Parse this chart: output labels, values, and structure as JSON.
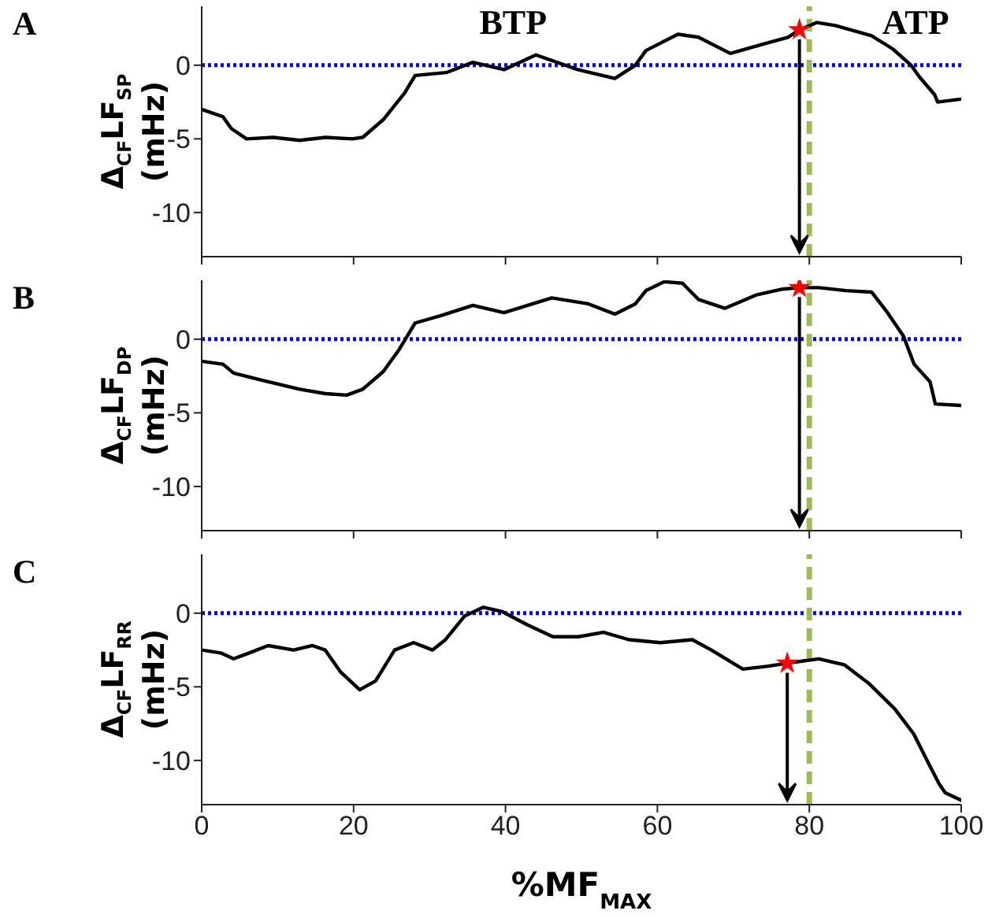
{
  "chart_data": [
    {
      "type": "line",
      "ylabel": "Δ$_{CF}$LF$_{SP}$ (mHz)",
      "annotations": [
        "A",
        "BTP",
        "ATP"
      ],
      "xlim": [
        0,
        100
      ],
      "xticks": [
        0,
        20,
        40,
        60,
        80,
        100
      ],
      "ylim": [
        -13,
        4
      ],
      "yticks": [
        -10,
        -5,
        0
      ],
      "tick_labels": "y",
      "grid": false,
      "ref_lines": [
        {
          "axis": "y",
          "value": 0,
          "color": "#0000ff",
          "line_style": "dotted"
        },
        {
          "axis": "x",
          "value": 80,
          "color": "#9bbb59",
          "line_style": "dashed"
        }
      ],
      "series": [
        {
          "color": "#000000",
          "marker": "none",
          "x": [
            0,
            2.8,
            3.9,
            5.9,
            9.4,
            12.9,
            16.3,
            19.8,
            21.2,
            23.9,
            26.7,
            28.1,
            32.2,
            35.7,
            39.8,
            44,
            49.5,
            54.4,
            57.1,
            58.5,
            62.7,
            65.4,
            69.6,
            73.7,
            77.2,
            78.7,
            81,
            83.4,
            88.2,
            91,
            93.4,
            94.5,
            96.5,
            96.9,
            100
          ],
          "values": [
            -3,
            -3.5,
            -4.3,
            -5,
            -4.9,
            -5.1,
            -4.9,
            -5,
            -4.9,
            -3.7,
            -1.9,
            -0.7,
            -0.5,
            0.2,
            -0.3,
            0.7,
            -0.3,
            -0.9,
            0,
            1,
            2.1,
            1.9,
            0.8,
            1.4,
            1.9,
            2.4,
            2.9,
            2.7,
            2,
            1.1,
            0,
            -0.8,
            -2,
            -2.5,
            -2.3
          ]
        },
        {
          "type": "scatter",
          "color": "#ff0000",
          "marker": "star",
          "x": [
            78.7
          ],
          "values": [
            2.4
          ]
        }
      ]
    },
    {
      "type": "line",
      "ylabel": "Δ$_{CF}$LF$_{DP}$ (mHz)",
      "annotations": [
        "B"
      ],
      "xlim": [
        0,
        100
      ],
      "xticks": [
        0,
        20,
        40,
        60,
        80,
        100
      ],
      "ylim": [
        -13,
        4
      ],
      "yticks": [
        -10,
        -5,
        0
      ],
      "tick_labels": "y",
      "grid": false,
      "ref_lines": [
        {
          "axis": "y",
          "value": 0,
          "color": "#0000ff",
          "line_style": "dotted"
        },
        {
          "axis": "x",
          "value": 80,
          "color": "#9bbb59",
          "line_style": "dashed"
        }
      ],
      "series": [
        {
          "color": "#000000",
          "marker": "none",
          "x": [
            0,
            2.8,
            4.2,
            8,
            12.9,
            16.3,
            19.1,
            21.2,
            23.9,
            26,
            28.1,
            31.5,
            35.7,
            39.8,
            46.1,
            50.9,
            54.4,
            57.1,
            58.5,
            60.9,
            63.3,
            65.4,
            68.9,
            73,
            76.5,
            78.7,
            81.3,
            84.8,
            88.2,
            90.3,
            92.4,
            93.8,
            95.9,
            96.5,
            96.6,
            100
          ],
          "values": [
            -1.5,
            -1.7,
            -2.3,
            -2.8,
            -3.4,
            -3.7,
            -3.8,
            -3.4,
            -2.2,
            -0.7,
            1.1,
            1.6,
            2.3,
            1.8,
            2.8,
            2.4,
            1.7,
            2.4,
            3.3,
            3.9,
            3.8,
            2.7,
            2.1,
            3,
            3.4,
            3.5,
            3.5,
            3.3,
            3.2,
            1.8,
            0.2,
            -1.7,
            -2.9,
            -4.2,
            -4.4,
            -4.5
          ]
        },
        {
          "type": "scatter",
          "color": "#ff0000",
          "marker": "star",
          "x": [
            78.7
          ],
          "values": [
            3.5
          ]
        }
      ]
    },
    {
      "type": "line",
      "ylabel": "Δ$_{CF}$LF$_{RR}$ (mHz)",
      "xlabel": "%MF$_{MAX}$",
      "annotations": [
        "C"
      ],
      "xlim": [
        0,
        100
      ],
      "xticks": [
        0,
        20,
        40,
        60,
        80,
        100
      ],
      "ylim": [
        -13,
        4
      ],
      "yticks": [
        -10,
        -5,
        0
      ],
      "grid": false,
      "ref_lines": [
        {
          "axis": "y",
          "value": 0,
          "color": "#0000ff",
          "line_style": "dotted"
        },
        {
          "axis": "x",
          "value": 80,
          "color": "#9bbb59",
          "line_style": "dashed"
        }
      ],
      "series": [
        {
          "color": "#000000",
          "marker": "none",
          "x": [
            0,
            2.5,
            4.2,
            6.25,
            8.75,
            12.1,
            14.6,
            16.25,
            18.3,
            20.8,
            22.9,
            25.4,
            27.9,
            30.4,
            32.1,
            34.6,
            37.1,
            39.6,
            42.9,
            46.25,
            49.6,
            52.9,
            56.25,
            60.4,
            64.6,
            67.1,
            71.25,
            74.6,
            77.1,
            81.25,
            84.6,
            87.9,
            91.25,
            93.75,
            95.8,
            97.1,
            97.9,
            100
          ],
          "values": [
            -2.5,
            -2.7,
            -3.1,
            -2.7,
            -2.2,
            -2.5,
            -2.2,
            -2.5,
            -4,
            -5.2,
            -4.6,
            -2.5,
            -2,
            -2.5,
            -1.8,
            -0.2,
            0.4,
            0.1,
            -0.8,
            -1.6,
            -1.6,
            -1.3,
            -1.8,
            -2,
            -1.8,
            -2.5,
            -3.8,
            -3.6,
            -3.4,
            -3.1,
            -3.5,
            -4.8,
            -6.5,
            -8.2,
            -10.3,
            -11.6,
            -12.2,
            -12.7
          ]
        },
        {
          "type": "scatter",
          "color": "#ff0000",
          "marker": "star",
          "x": [
            77.1
          ],
          "values": [
            -3.4
          ]
        }
      ]
    }
  ]
}
